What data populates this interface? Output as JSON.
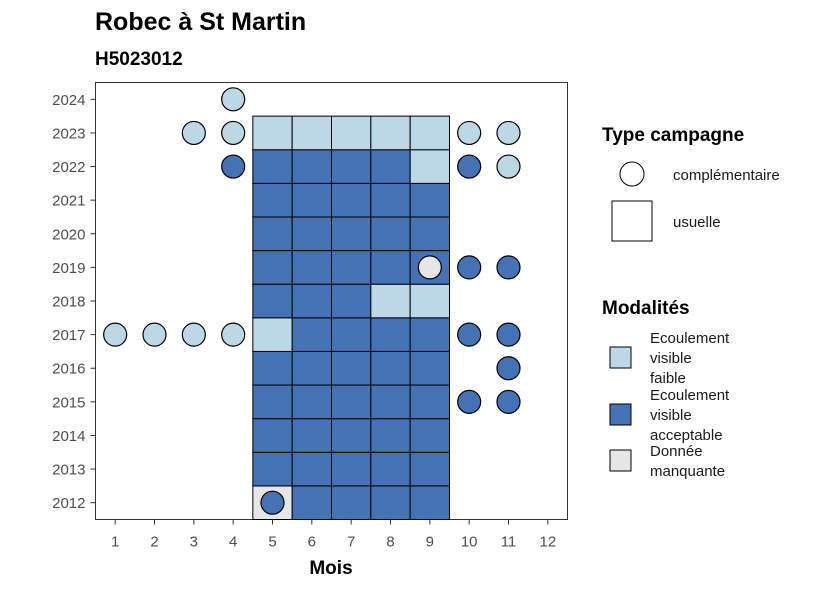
{
  "chart_data": {
    "type": "heatmap",
    "title": "Robec à St Martin",
    "subtitle": "H5023012",
    "xlabel": "Mois",
    "ylabel": "",
    "x_ticks": [
      1,
      2,
      3,
      4,
      5,
      6,
      7,
      8,
      9,
      10,
      11,
      12
    ],
    "y_ticks": [
      2012,
      2013,
      2014,
      2015,
      2016,
      2017,
      2018,
      2019,
      2020,
      2021,
      2022,
      2023,
      2024
    ],
    "xlim": [
      0.5,
      12.5
    ],
    "ylim": [
      2011.5,
      2024.5
    ],
    "grid": false,
    "colors": {
      "Ecoulement visible faible": "#bcd7e6",
      "Ecoulement visible acceptable": "#4472b4",
      "Donnée manquante": "#e6e6e6"
    },
    "legend_type": {
      "title": "Type campagne",
      "items": [
        {
          "label": "complémentaire",
          "shape": "circle"
        },
        {
          "label": "usuelle",
          "shape": "square"
        }
      ]
    },
    "legend_modalites": {
      "title": "Modalités",
      "items": [
        {
          "key": "Ecoulement visible faible",
          "lines": [
            "Ecoulement",
            "visible",
            "faible"
          ]
        },
        {
          "key": "Ecoulement visible acceptable",
          "lines": [
            "Ecoulement",
            "visible",
            "acceptable"
          ]
        },
        {
          "key": "Donnée manquante",
          "lines": [
            "Donnée",
            "manquante"
          ]
        }
      ]
    },
    "usuelle": [
      {
        "year": 2012,
        "month": 5,
        "value": "Donnée manquante"
      },
      {
        "year": 2012,
        "month": 6,
        "value": "Ecoulement visible acceptable"
      },
      {
        "year": 2012,
        "month": 7,
        "value": "Ecoulement visible acceptable"
      },
      {
        "year": 2012,
        "month": 8,
        "value": "Ecoulement visible acceptable"
      },
      {
        "year": 2012,
        "month": 9,
        "value": "Ecoulement visible acceptable"
      },
      {
        "year": 2013,
        "month": 5,
        "value": "Ecoulement visible acceptable"
      },
      {
        "year": 2013,
        "month": 6,
        "value": "Ecoulement visible acceptable"
      },
      {
        "year": 2013,
        "month": 7,
        "value": "Ecoulement visible acceptable"
      },
      {
        "year": 2013,
        "month": 8,
        "value": "Ecoulement visible acceptable"
      },
      {
        "year": 2013,
        "month": 9,
        "value": "Ecoulement visible acceptable"
      },
      {
        "year": 2014,
        "month": 5,
        "value": "Ecoulement visible acceptable"
      },
      {
        "year": 2014,
        "month": 6,
        "value": "Ecoulement visible acceptable"
      },
      {
        "year": 2014,
        "month": 7,
        "value": "Ecoulement visible acceptable"
      },
      {
        "year": 2014,
        "month": 8,
        "value": "Ecoulement visible acceptable"
      },
      {
        "year": 2014,
        "month": 9,
        "value": "Ecoulement visible acceptable"
      },
      {
        "year": 2015,
        "month": 5,
        "value": "Ecoulement visible acceptable"
      },
      {
        "year": 2015,
        "month": 6,
        "value": "Ecoulement visible acceptable"
      },
      {
        "year": 2015,
        "month": 7,
        "value": "Ecoulement visible acceptable"
      },
      {
        "year": 2015,
        "month": 8,
        "value": "Ecoulement visible acceptable"
      },
      {
        "year": 2015,
        "month": 9,
        "value": "Ecoulement visible acceptable"
      },
      {
        "year": 2016,
        "month": 5,
        "value": "Ecoulement visible acceptable"
      },
      {
        "year": 2016,
        "month": 6,
        "value": "Ecoulement visible acceptable"
      },
      {
        "year": 2016,
        "month": 7,
        "value": "Ecoulement visible acceptable"
      },
      {
        "year": 2016,
        "month": 8,
        "value": "Ecoulement visible acceptable"
      },
      {
        "year": 2016,
        "month": 9,
        "value": "Ecoulement visible acceptable"
      },
      {
        "year": 2017,
        "month": 5,
        "value": "Ecoulement visible faible"
      },
      {
        "year": 2017,
        "month": 6,
        "value": "Ecoulement visible acceptable"
      },
      {
        "year": 2017,
        "month": 7,
        "value": "Ecoulement visible acceptable"
      },
      {
        "year": 2017,
        "month": 8,
        "value": "Ecoulement visible acceptable"
      },
      {
        "year": 2017,
        "month": 9,
        "value": "Ecoulement visible acceptable"
      },
      {
        "year": 2018,
        "month": 5,
        "value": "Ecoulement visible acceptable"
      },
      {
        "year": 2018,
        "month": 6,
        "value": "Ecoulement visible acceptable"
      },
      {
        "year": 2018,
        "month": 7,
        "value": "Ecoulement visible acceptable"
      },
      {
        "year": 2018,
        "month": 8,
        "value": "Ecoulement visible faible"
      },
      {
        "year": 2018,
        "month": 9,
        "value": "Ecoulement visible faible"
      },
      {
        "year": 2019,
        "month": 5,
        "value": "Ecoulement visible acceptable"
      },
      {
        "year": 2019,
        "month": 6,
        "value": "Ecoulement visible acceptable"
      },
      {
        "year": 2019,
        "month": 7,
        "value": "Ecoulement visible acceptable"
      },
      {
        "year": 2019,
        "month": 8,
        "value": "Ecoulement visible acceptable"
      },
      {
        "year": 2019,
        "month": 9,
        "value": "Ecoulement visible acceptable"
      },
      {
        "year": 2020,
        "month": 5,
        "value": "Ecoulement visible acceptable"
      },
      {
        "year": 2020,
        "month": 6,
        "value": "Ecoulement visible acceptable"
      },
      {
        "year": 2020,
        "month": 7,
        "value": "Ecoulement visible acceptable"
      },
      {
        "year": 2020,
        "month": 8,
        "value": "Ecoulement visible acceptable"
      },
      {
        "year": 2020,
        "month": 9,
        "value": "Ecoulement visible acceptable"
      },
      {
        "year": 2021,
        "month": 5,
        "value": "Ecoulement visible acceptable"
      },
      {
        "year": 2021,
        "month": 6,
        "value": "Ecoulement visible acceptable"
      },
      {
        "year": 2021,
        "month": 7,
        "value": "Ecoulement visible acceptable"
      },
      {
        "year": 2021,
        "month": 8,
        "value": "Ecoulement visible acceptable"
      },
      {
        "year": 2021,
        "month": 9,
        "value": "Ecoulement visible acceptable"
      },
      {
        "year": 2022,
        "month": 5,
        "value": "Ecoulement visible acceptable"
      },
      {
        "year": 2022,
        "month": 6,
        "value": "Ecoulement visible acceptable"
      },
      {
        "year": 2022,
        "month": 7,
        "value": "Ecoulement visible acceptable"
      },
      {
        "year": 2022,
        "month": 8,
        "value": "Ecoulement visible acceptable"
      },
      {
        "year": 2022,
        "month": 9,
        "value": "Ecoulement visible faible"
      },
      {
        "year": 2023,
        "month": 5,
        "value": "Ecoulement visible faible"
      },
      {
        "year": 2023,
        "month": 6,
        "value": "Ecoulement visible faible"
      },
      {
        "year": 2023,
        "month": 7,
        "value": "Ecoulement visible faible"
      },
      {
        "year": 2023,
        "month": 8,
        "value": "Ecoulement visible faible"
      },
      {
        "year": 2023,
        "month": 9,
        "value": "Ecoulement visible faible"
      }
    ],
    "complementaire": [
      {
        "year": 2012,
        "month": 5,
        "value": "Ecoulement visible acceptable"
      },
      {
        "year": 2015,
        "month": 10,
        "value": "Ecoulement visible acceptable"
      },
      {
        "year": 2015,
        "month": 11,
        "value": "Ecoulement visible acceptable"
      },
      {
        "year": 2016,
        "month": 11,
        "value": "Ecoulement visible acceptable"
      },
      {
        "year": 2017,
        "month": 1,
        "value": "Ecoulement visible faible"
      },
      {
        "year": 2017,
        "month": 2,
        "value": "Ecoulement visible faible"
      },
      {
        "year": 2017,
        "month": 3,
        "value": "Ecoulement visible faible"
      },
      {
        "year": 2017,
        "month": 4,
        "value": "Ecoulement visible faible"
      },
      {
        "year": 2017,
        "month": 10,
        "value": "Ecoulement visible acceptable"
      },
      {
        "year": 2017,
        "month": 11,
        "value": "Ecoulement visible acceptable"
      },
      {
        "year": 2019,
        "month": 9,
        "value": "Donnée manquante"
      },
      {
        "year": 2019,
        "month": 10,
        "value": "Ecoulement visible acceptable"
      },
      {
        "year": 2019,
        "month": 11,
        "value": "Ecoulement visible acceptable"
      },
      {
        "year": 2022,
        "month": 4,
        "value": "Ecoulement visible acceptable"
      },
      {
        "year": 2022,
        "month": 10,
        "value": "Ecoulement visible acceptable"
      },
      {
        "year": 2022,
        "month": 11,
        "value": "Ecoulement visible faible"
      },
      {
        "year": 2023,
        "month": 3,
        "value": "Ecoulement visible faible"
      },
      {
        "year": 2023,
        "month": 4,
        "value": "Ecoulement visible faible"
      },
      {
        "year": 2023,
        "month": 10,
        "value": "Ecoulement visible faible"
      },
      {
        "year": 2023,
        "month": 11,
        "value": "Ecoulement visible faible"
      },
      {
        "year": 2024,
        "month": 4,
        "value": "Ecoulement visible faible"
      }
    ]
  }
}
